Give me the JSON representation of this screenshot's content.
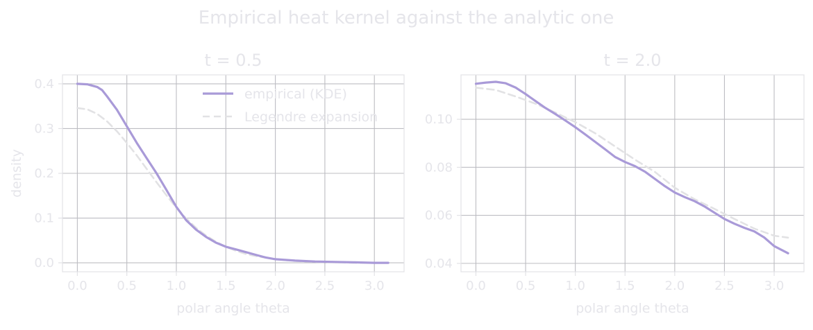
{
  "title": "Empirical heat kernel against the analytic one",
  "colors": {
    "empirical": "#a99ad8",
    "legendre": "#e2e2e4",
    "text": "#e5e5ea",
    "grid": "#bdbdc2",
    "frame": "#e2e2e6"
  },
  "legend": {
    "placement": "top-right of first panel",
    "entries": [
      "empirical (KDE)",
      "Legendre expansion"
    ]
  },
  "chart_data": [
    {
      "type": "line",
      "title": "t = 0.5",
      "xlabel": "polar angle theta",
      "ylabel": "density",
      "xlim": [
        -0.15,
        3.3
      ],
      "ylim": [
        -0.02,
        0.42
      ],
      "xticks": [
        0.0,
        0.5,
        1.0,
        1.5,
        2.0,
        2.5,
        3.0
      ],
      "xtick_labels": [
        "0.0",
        "0.5",
        "1.0",
        "1.5",
        "2.0",
        "2.5",
        "3.0"
      ],
      "yticks": [
        0.0,
        0.1,
        0.2,
        0.3,
        0.4
      ],
      "ytick_labels": [
        "0.0",
        "0.1",
        "0.2",
        "0.3",
        "0.4"
      ],
      "grid": true,
      "legend": true,
      "series": [
        {
          "name": "empirical (KDE)",
          "style": "solid",
          "x": [
            0.0,
            0.1,
            0.2,
            0.25,
            0.3,
            0.4,
            0.5,
            0.6,
            0.7,
            0.8,
            0.9,
            1.0,
            1.1,
            1.2,
            1.3,
            1.4,
            1.5,
            1.6,
            1.7,
            1.8,
            1.9,
            2.0,
            2.2,
            2.4,
            2.6,
            2.8,
            3.0,
            3.14
          ],
          "y": [
            0.4,
            0.399,
            0.393,
            0.386,
            0.372,
            0.342,
            0.305,
            0.268,
            0.234,
            0.2,
            0.163,
            0.125,
            0.095,
            0.074,
            0.058,
            0.045,
            0.036,
            0.03,
            0.024,
            0.018,
            0.012,
            0.008,
            0.005,
            0.003,
            0.002,
            0.001,
            0.0,
            0.0
          ]
        },
        {
          "name": "Legendre expansion",
          "style": "dashed",
          "x": [
            0.0,
            0.1,
            0.2,
            0.3,
            0.4,
            0.5,
            0.6,
            0.7,
            0.8,
            0.9,
            1.0,
            1.1,
            1.2,
            1.3,
            1.4,
            1.5,
            1.6,
            1.7,
            1.8,
            2.0,
            2.2,
            2.4,
            2.6,
            2.8,
            3.0,
            3.14
          ],
          "y": [
            0.346,
            0.343,
            0.333,
            0.316,
            0.294,
            0.268,
            0.24,
            0.21,
            0.18,
            0.151,
            0.123,
            0.099,
            0.078,
            0.061,
            0.047,
            0.036,
            0.027,
            0.02,
            0.015,
            0.008,
            0.004,
            0.002,
            0.001,
            0.0,
            0.0,
            0.0
          ]
        }
      ]
    },
    {
      "type": "line",
      "title": "t = 2.0",
      "xlabel": "polar angle theta",
      "ylabel": "",
      "xlim": [
        -0.15,
        3.3
      ],
      "ylim": [
        0.0365,
        0.1185
      ],
      "xticks": [
        0.0,
        0.5,
        1.0,
        1.5,
        2.0,
        2.5,
        3.0
      ],
      "xtick_labels": [
        "0.0",
        "0.5",
        "1.0",
        "1.5",
        "2.0",
        "2.5",
        "3.0"
      ],
      "yticks": [
        0.04,
        0.06,
        0.08,
        0.1
      ],
      "ytick_labels": [
        "0.04",
        "0.06",
        "0.08",
        "0.10"
      ],
      "grid": true,
      "legend": false,
      "series": [
        {
          "name": "empirical (KDE)",
          "style": "solid",
          "x": [
            0.0,
            0.1,
            0.2,
            0.3,
            0.4,
            0.5,
            0.6,
            0.7,
            0.8,
            0.9,
            1.0,
            1.1,
            1.2,
            1.3,
            1.4,
            1.5,
            1.6,
            1.7,
            1.8,
            1.9,
            2.0,
            2.1,
            2.2,
            2.3,
            2.4,
            2.5,
            2.6,
            2.7,
            2.8,
            2.9,
            3.0,
            3.14
          ],
          "y": [
            0.1148,
            0.1153,
            0.1156,
            0.115,
            0.1132,
            0.1105,
            0.1076,
            0.1047,
            0.1022,
            0.0995,
            0.0967,
            0.0937,
            0.0906,
            0.0875,
            0.0843,
            0.0822,
            0.0805,
            0.0782,
            0.0752,
            0.0722,
            0.0695,
            0.0676,
            0.0659,
            0.0637,
            0.0611,
            0.0585,
            0.0565,
            0.0548,
            0.0533,
            0.0508,
            0.0472,
            0.0442
          ]
        },
        {
          "name": "Legendre expansion",
          "style": "dashed",
          "x": [
            0.0,
            0.2,
            0.4,
            0.6,
            0.8,
            1.0,
            1.2,
            1.4,
            1.6,
            1.8,
            2.0,
            2.2,
            2.4,
            2.6,
            2.8,
            3.0,
            3.14
          ],
          "y": [
            0.1132,
            0.1122,
            0.1095,
            0.1065,
            0.1028,
            0.0988,
            0.0942,
            0.0887,
            0.0832,
            0.0781,
            0.0715,
            0.0667,
            0.0627,
            0.0585,
            0.0545,
            0.0515,
            0.0507
          ]
        }
      ]
    }
  ]
}
